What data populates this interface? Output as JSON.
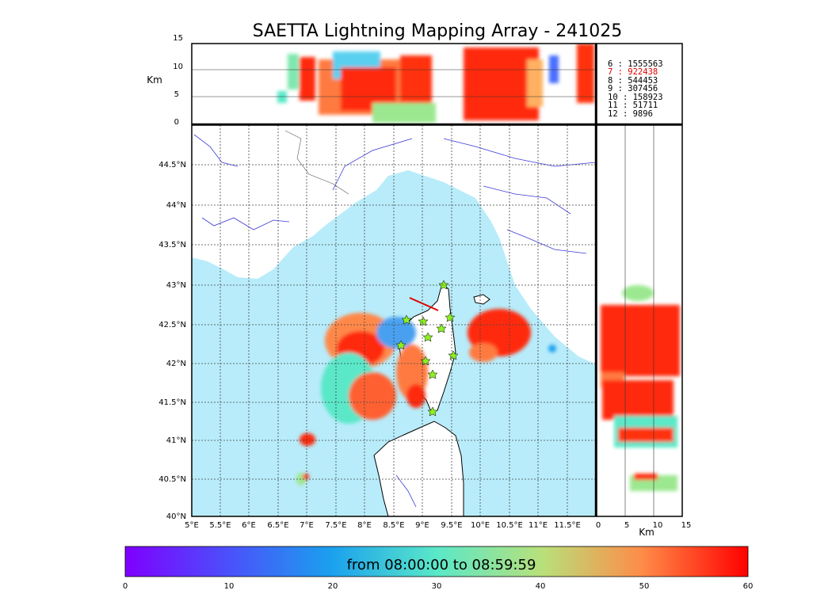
{
  "title": "SAETTA Lightning Mapping Array - 241025",
  "top_panel": {
    "ylabel": "Km",
    "yticks": [
      "15",
      "10",
      "5",
      "0"
    ]
  },
  "right_panel": {
    "xlabel": "Km",
    "xticks": [
      "0",
      "5",
      "10",
      "15"
    ]
  },
  "map": {
    "lon_ticks": [
      "5°E",
      "5.5°E",
      "6°E",
      "6.5°E",
      "7°E",
      "7.5°E",
      "8°E",
      "8.5°E",
      "9°E",
      "9.5°E",
      "10°E",
      "10.5°E",
      "11°E",
      "11.5°E"
    ],
    "lat_ticks": [
      "44.5°N",
      "44°N",
      "43.5°N",
      "43°N",
      "42.5°N",
      "42°N",
      "41.5°N",
      "41°N",
      "40.5°N",
      "40°N"
    ],
    "sea_color": "#b8ecfa",
    "river_color": "#3a3ad8"
  },
  "stats": [
    {
      "label": "6  :  1555563",
      "color": "#000000"
    },
    {
      "label": "7  :   922438",
      "color": "#e00000"
    },
    {
      "label": "8  :   544453",
      "color": "#000000"
    },
    {
      "label": "9  :   307456",
      "color": "#000000"
    },
    {
      "label": "10 :   158923",
      "color": "#000000"
    },
    {
      "label": "11 :    51711",
      "color": "#000000"
    },
    {
      "label": "12 :     9896",
      "color": "#000000"
    }
  ],
  "colorbar": {
    "label": "from 08:00:00 to 08:59:59",
    "ticks": [
      "0",
      "10",
      "20",
      "30",
      "40",
      "50",
      "60"
    ],
    "colormap": "rainbow"
  }
}
